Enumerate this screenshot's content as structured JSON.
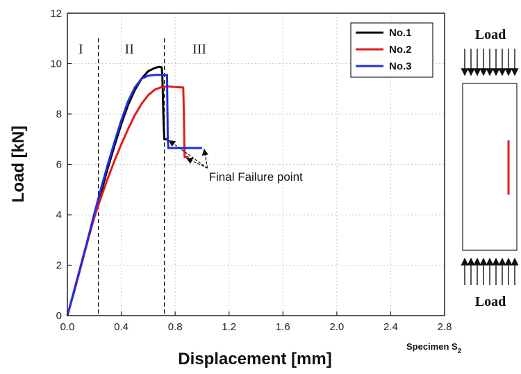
{
  "chart_data": {
    "type": "line",
    "xlabel": "Displacement [mm]",
    "ylabel": "Load [kN]",
    "xlim": [
      0.0,
      2.8
    ],
    "ylim": [
      0,
      12
    ],
    "xticks": [
      "0.0",
      "0.4",
      "0.8",
      "1.2",
      "1.6",
      "2.0",
      "2.4",
      "2.8"
    ],
    "yticks": [
      "0",
      "2",
      "4",
      "6",
      "8",
      "10",
      "12"
    ],
    "grid": true,
    "legend_position": "top-right",
    "regions": [
      {
        "label": "I",
        "boundary_x": 0.23
      },
      {
        "label": "II",
        "boundary_x": 0.72
      },
      {
        "label": "III"
      }
    ],
    "region_label_x": [
      0.1,
      0.46,
      0.98
    ],
    "series": [
      {
        "name": "No.1",
        "color": "#000000",
        "x": [
          0,
          0.05,
          0.1,
          0.15,
          0.2,
          0.25,
          0.3,
          0.35,
          0.4,
          0.45,
          0.5,
          0.55,
          0.6,
          0.65,
          0.68,
          0.7,
          0.705,
          0.71,
          0.715,
          0.72,
          0.73,
          0.74
        ],
        "y": [
          0,
          0.95,
          1.95,
          2.95,
          3.95,
          4.9,
          5.85,
          6.75,
          7.6,
          8.35,
          8.95,
          9.4,
          9.7,
          9.83,
          9.87,
          9.85,
          9.5,
          8.5,
          7.5,
          7.0,
          7.0,
          7.0
        ]
      },
      {
        "name": "No.2",
        "color": "#e31a1c",
        "x": [
          0,
          0.05,
          0.1,
          0.15,
          0.2,
          0.25,
          0.3,
          0.35,
          0.4,
          0.45,
          0.5,
          0.55,
          0.6,
          0.65,
          0.7,
          0.74,
          0.8,
          0.86,
          0.865,
          0.868,
          0.87,
          0.9
        ],
        "y": [
          0,
          0.95,
          1.95,
          2.95,
          3.9,
          4.7,
          5.45,
          6.15,
          6.8,
          7.4,
          7.95,
          8.4,
          8.75,
          8.97,
          9.07,
          9.1,
          9.07,
          9.05,
          8.0,
          7.0,
          6.3,
          6.3
        ]
      },
      {
        "name": "No.3",
        "color": "#1f2fe0",
        "x": [
          0,
          0.05,
          0.1,
          0.15,
          0.2,
          0.25,
          0.3,
          0.35,
          0.4,
          0.45,
          0.5,
          0.55,
          0.6,
          0.65,
          0.7,
          0.72,
          0.74,
          0.742,
          0.745,
          0.75,
          0.8,
          0.9,
          1.0
        ],
        "y": [
          0,
          1.0,
          2.0,
          3.0,
          4.05,
          5.05,
          6.0,
          6.9,
          7.75,
          8.5,
          9.05,
          9.4,
          9.52,
          9.55,
          9.55,
          9.55,
          9.55,
          8.5,
          7.0,
          6.65,
          6.65,
          6.65,
          6.65
        ]
      }
    ],
    "failure_points": [
      {
        "x": 0.74,
        "y": 7.0
      },
      {
        "x": 0.87,
        "y": 6.3
      },
      {
        "x": 1.0,
        "y": 6.65
      }
    ],
    "annotation": {
      "text": "Final Failure point",
      "x": 1.05,
      "y": 5.35
    }
  },
  "schematic": {
    "load_top": "Load",
    "load_bottom": "Load",
    "specimen_label": "Specimen S",
    "specimen_subscript": "2",
    "crack_color": "#d42020"
  }
}
